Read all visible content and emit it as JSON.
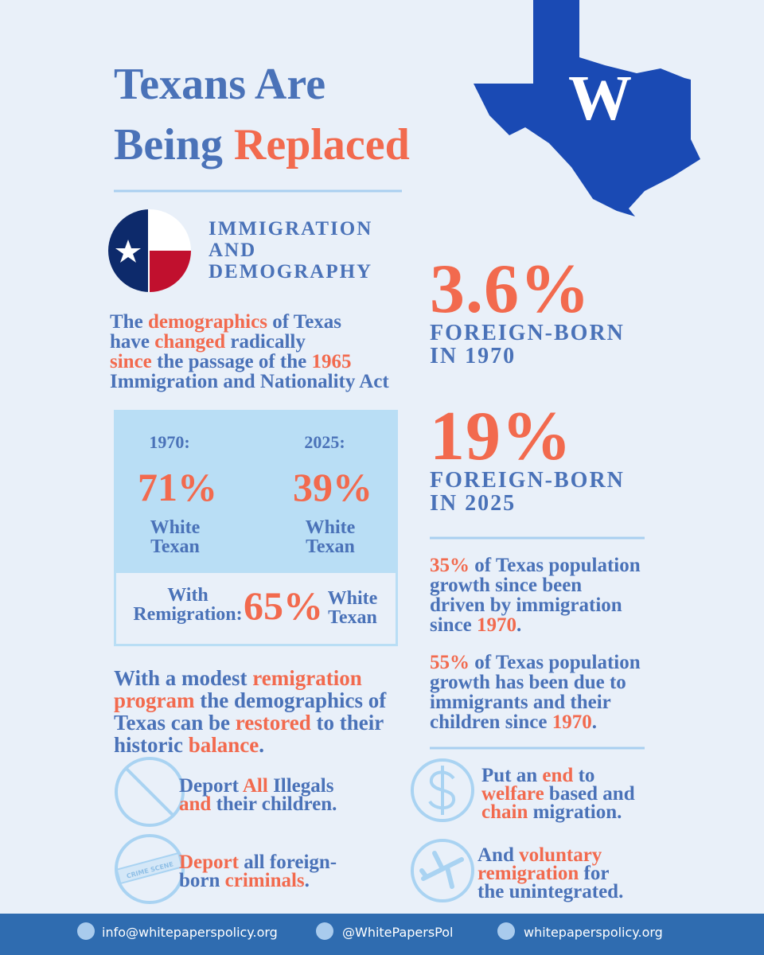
{
  "header": {
    "title_lines": [
      [
        {
          "text": "Texans Are",
          "accent": false
        }
      ],
      [
        {
          "text": "Being ",
          "accent": false
        },
        {
          "text": "Replaced",
          "accent": true
        }
      ]
    ],
    "logo_letter": "W"
  },
  "section": {
    "heading_lines": [
      "IMMIGRATION",
      "AND",
      "DEMOGRAPHY"
    ]
  },
  "intro": {
    "lines": [
      [
        {
          "text": "The ",
          "accent": false
        },
        {
          "text": "demographics",
          "accent": true
        },
        {
          "text": " of Texas",
          "accent": false
        }
      ],
      [
        {
          "text": "have ",
          "accent": false
        },
        {
          "text": "changed",
          "accent": true
        },
        {
          "text": " radically",
          "accent": false
        }
      ],
      [
        {
          "text": "since",
          "accent": true
        },
        {
          "text": " the passage of the ",
          "accent": false
        },
        {
          "text": "1965",
          "accent": true
        }
      ],
      [
        {
          "text": "Immigration and Nationality Act",
          "accent": false
        }
      ]
    ]
  },
  "compare": {
    "left": {
      "year": "1970:",
      "value": "71%",
      "label_lines": [
        "White",
        "Texan"
      ]
    },
    "right": {
      "year": "2025:",
      "value": "39%",
      "label_lines": [
        "White",
        "Texan"
      ]
    },
    "remigration": {
      "prefix_lines": [
        "With",
        "Remigration:"
      ],
      "value": "65%",
      "label_lines": [
        "White",
        "Texan"
      ]
    }
  },
  "stats": [
    {
      "value": "3.6%",
      "label_lines": [
        "FOREIGN-BORN",
        "IN 1970"
      ]
    },
    {
      "value": "19%",
      "label_lines": [
        "FOREIGN-BORN",
        "IN 2025"
      ]
    }
  ],
  "facts": [
    {
      "lines": [
        [
          {
            "text": "35%",
            "accent": true
          },
          {
            "text": " of Texas population",
            "accent": false
          }
        ],
        [
          {
            "text": "growth since been",
            "accent": false
          }
        ],
        [
          {
            "text": "driven by immigration",
            "accent": false
          }
        ],
        [
          {
            "text": "since ",
            "accent": false
          },
          {
            "text": "1970",
            "accent": true
          },
          {
            "text": ".",
            "accent": false
          }
        ]
      ]
    },
    {
      "lines": [
        [
          {
            "text": "55%",
            "accent": true
          },
          {
            "text": " of Texas population",
            "accent": false
          }
        ],
        [
          {
            "text": "growth has been due to",
            "accent": false
          }
        ],
        [
          {
            "text": "immigrants and their",
            "accent": false
          }
        ],
        [
          {
            "text": "children since ",
            "accent": false
          },
          {
            "text": "1970",
            "accent": true
          },
          {
            "text": ".",
            "accent": false
          }
        ]
      ]
    }
  ],
  "program": {
    "lines": [
      [
        {
          "text": "With a modest ",
          "accent": false
        },
        {
          "text": "remigration",
          "accent": true
        }
      ],
      [
        {
          "text": "program",
          "accent": true
        },
        {
          "text": " the demographics of",
          "accent": false
        }
      ],
      [
        {
          "text": "Texas can be ",
          "accent": false
        },
        {
          "text": "restored",
          "accent": true
        },
        {
          "text": " to their",
          "accent": false
        }
      ],
      [
        {
          "text": "historic ",
          "accent": false
        },
        {
          "text": "balance",
          "accent": true
        },
        {
          "text": ".",
          "accent": false
        }
      ]
    ]
  },
  "actions": [
    {
      "lines": [
        [
          {
            "text": "Deport ",
            "accent": false
          },
          {
            "text": "All",
            "accent": true
          },
          {
            "text": " Illegals",
            "accent": false
          }
        ],
        [
          {
            "text": "and",
            "accent": true
          },
          {
            "text": " their children.",
            "accent": false
          }
        ]
      ]
    },
    {
      "icon_text": "CRIME SCENE",
      "lines": [
        [
          {
            "text": "Deport",
            "accent": true
          },
          {
            "text": " all foreign-",
            "accent": false
          }
        ],
        [
          {
            "text": "born ",
            "accent": false
          },
          {
            "text": "criminals",
            "accent": true
          },
          {
            "text": ".",
            "accent": false
          }
        ]
      ]
    },
    {
      "lines": [
        [
          {
            "text": "Put an ",
            "accent": false
          },
          {
            "text": "end",
            "accent": true
          },
          {
            "text": " to",
            "accent": false
          }
        ],
        [
          {
            "text": "welfare",
            "accent": true
          },
          {
            "text": " based and",
            "accent": false
          }
        ],
        [
          {
            "text": "chain",
            "accent": true
          },
          {
            "text": " migration.",
            "accent": false
          }
        ]
      ]
    },
    {
      "lines": [
        [
          {
            "text": "And ",
            "accent": false
          },
          {
            "text": "voluntary",
            "accent": true
          }
        ],
        [
          {
            "text": "remigration",
            "accent": true
          },
          {
            "text": " for",
            "accent": false
          }
        ],
        [
          {
            "text": "the unintegrated.",
            "accent": false
          }
        ]
      ]
    }
  ],
  "footer": {
    "items": [
      "info@whitepaperspolicy.org",
      "@WhitePapersPol",
      "whitepaperspolicy.org"
    ]
  }
}
